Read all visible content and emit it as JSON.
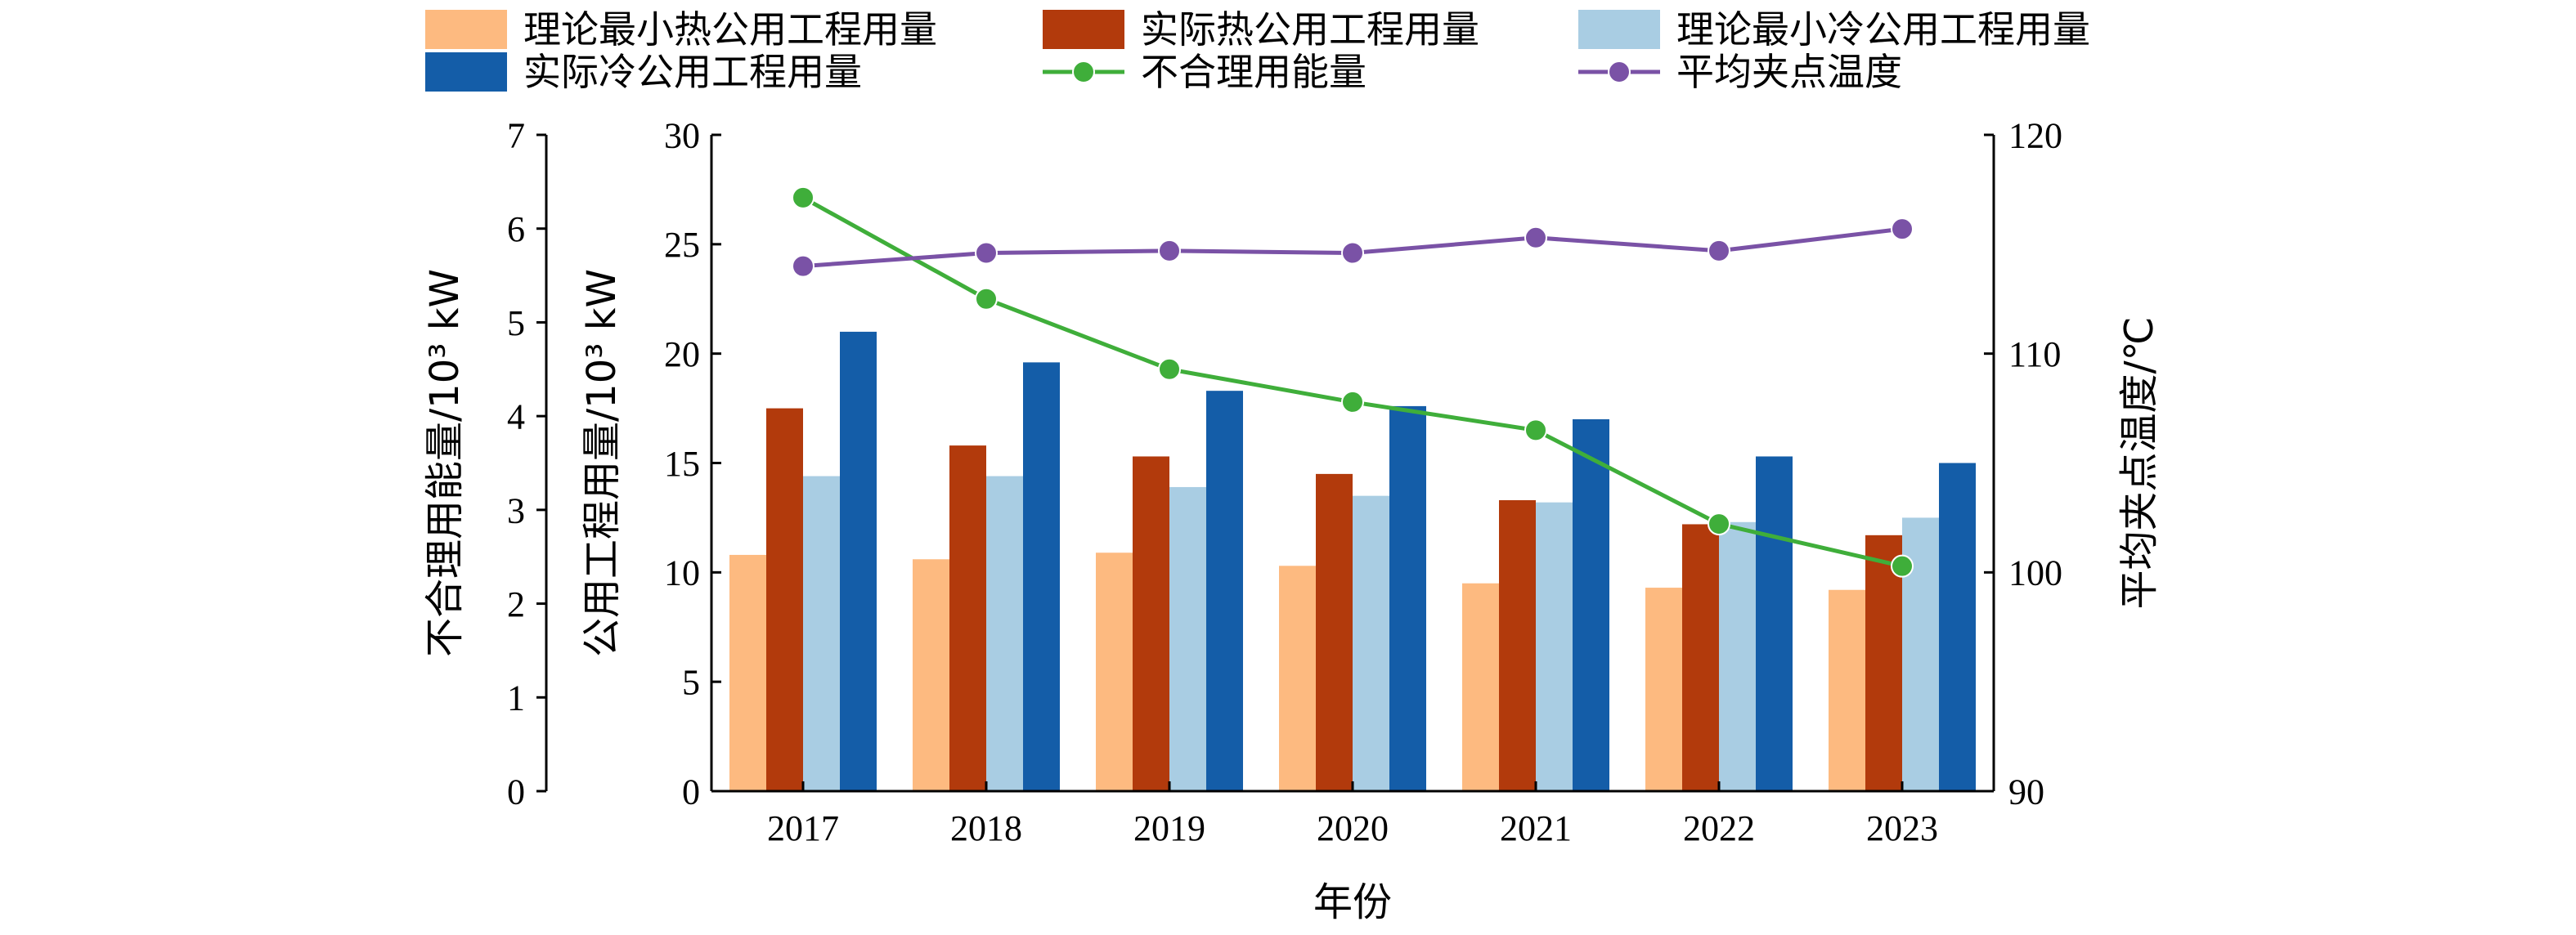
{
  "chart_data": {
    "type": "bar",
    "xlabel": "年份",
    "categories": [
      "2017",
      "2018",
      "2019",
      "2020",
      "2021",
      "2022",
      "2023"
    ],
    "colors": {
      "theory_hot": "#FDBA80",
      "actual_hot": "#B23A0C",
      "theory_cold": "#A9CDE3",
      "actual_cold": "#145DA8",
      "irrational": "#3FAE3A",
      "pinch": "#7A52A6"
    },
    "axes": {
      "left_outer": {
        "label": "不合理用能量/10³ kW",
        "ylim": [
          0,
          7
        ],
        "ticks": [
          "0",
          "1",
          "2",
          "3",
          "4",
          "5",
          "6",
          "7"
        ]
      },
      "left_inner": {
        "label": "公用工程用量/10³ kW",
        "ylim": [
          0,
          30
        ],
        "ticks": [
          "0",
          "5",
          "10",
          "15",
          "20",
          "25",
          "30"
        ]
      },
      "right": {
        "label": "平均夹点温度/℃",
        "ylim": [
          90,
          120
        ],
        "ticks": [
          "90",
          "100",
          "110",
          "120"
        ]
      }
    },
    "series": [
      {
        "name": "理论最小热公用工程用量",
        "type": "bar",
        "axis": "left_inner",
        "color_key": "theory_hot",
        "values": [
          10.8,
          10.6,
          10.9,
          10.3,
          9.5,
          9.3,
          9.2
        ]
      },
      {
        "name": "实际热公用工程用量",
        "type": "bar",
        "axis": "left_inner",
        "color_key": "actual_hot",
        "values": [
          17.5,
          15.8,
          15.3,
          14.5,
          13.3,
          12.2,
          11.7
        ]
      },
      {
        "name": "理论最小冷公用工程用量",
        "type": "bar",
        "axis": "left_inner",
        "color_key": "theory_cold",
        "values": [
          14.4,
          14.4,
          13.9,
          13.5,
          13.2,
          12.3,
          12.5
        ]
      },
      {
        "name": "实际冷公用工程用量",
        "type": "bar",
        "axis": "left_inner",
        "color_key": "actual_cold",
        "values": [
          21.0,
          19.6,
          18.3,
          17.6,
          17.0,
          15.3,
          15.0
        ]
      },
      {
        "name": "不合理用能量",
        "type": "line",
        "axis": "left_outer",
        "color_key": "irrational",
        "values": [
          6.33,
          5.25,
          4.5,
          4.15,
          3.85,
          2.85,
          2.4
        ]
      },
      {
        "name": "平均夹点温度",
        "type": "line",
        "axis": "right",
        "color_key": "pinch",
        "values": [
          114.0,
          114.6,
          114.7,
          114.6,
          115.3,
          114.7,
          115.7
        ]
      }
    ],
    "legend": {
      "placement": "top",
      "items": [
        {
          "label": "理论最小热公用工程用量",
          "kind": "patch",
          "color_key": "theory_hot"
        },
        {
          "label": "实际热公用工程用量",
          "kind": "patch",
          "color_key": "actual_hot"
        },
        {
          "label": "理论最小冷公用工程用量",
          "kind": "patch",
          "color_key": "theory_cold"
        },
        {
          "label": "实际冷公用工程用量",
          "kind": "patch",
          "color_key": "actual_cold"
        },
        {
          "label": "不合理用能量",
          "kind": "line",
          "color_key": "irrational"
        },
        {
          "label": "平均夹点温度",
          "kind": "line",
          "color_key": "pinch"
        }
      ]
    }
  }
}
